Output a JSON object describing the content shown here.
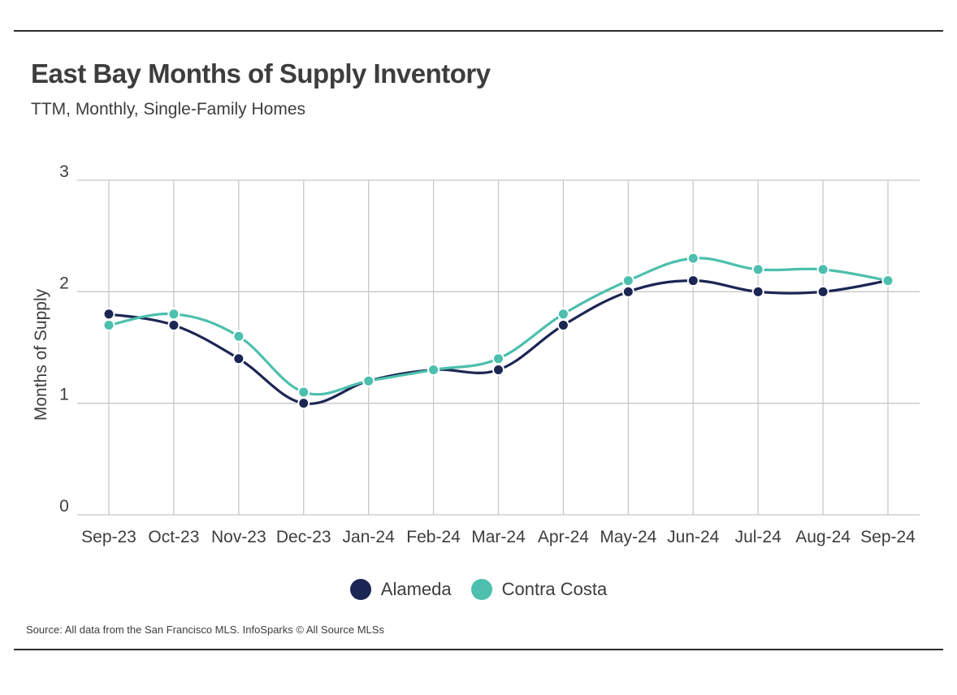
{
  "header": {
    "title": "East Bay Months of Supply Inventory",
    "subtitle": "TTM, Monthly, Single-Family Homes"
  },
  "footer": {
    "source": "Source:  All data from the San Francisco MLS. InfoSparks © All Source MLSs"
  },
  "chart_data": {
    "type": "line",
    "title": "East Bay Months of Supply Inventory",
    "subtitle": "TTM, Monthly, Single-Family Homes",
    "xlabel": "",
    "ylabel": "Months of Supply",
    "ylim": [
      0,
      3
    ],
    "yticks": [
      "0",
      "1",
      "2",
      "3"
    ],
    "categories": [
      "Sep-23",
      "Oct-23",
      "Nov-23",
      "Dec-23",
      "Jan-24",
      "Feb-24",
      "Mar-24",
      "Apr-24",
      "May-24",
      "Jun-24",
      "Jul-24",
      "Aug-24",
      "Sep-24"
    ],
    "series": [
      {
        "name": "Alameda",
        "color": "#1c2654",
        "values": [
          1.8,
          1.7,
          1.4,
          1.0,
          1.2,
          1.3,
          1.3,
          1.7,
          2.0,
          2.1,
          2.0,
          2.0,
          2.1
        ]
      },
      {
        "name": "Contra Costa",
        "color": "#4cbfad",
        "values": [
          1.7,
          1.8,
          1.6,
          1.1,
          1.2,
          1.3,
          1.4,
          1.8,
          2.1,
          2.3,
          2.2,
          2.2,
          2.1
        ]
      }
    ],
    "grid": true,
    "legend_position": "bottom-center"
  }
}
